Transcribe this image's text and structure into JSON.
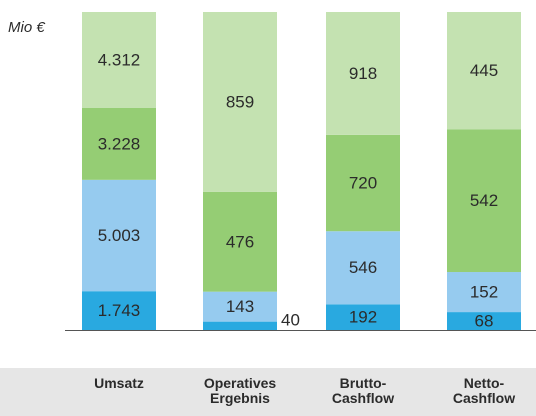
{
  "chart_data": {
    "type": "stacked_bar_100",
    "y_label": "Mio €",
    "categories": [
      "Umsatz",
      "Operatives Ergebnis",
      "Brutto-Cashflow",
      "Netto-Cashflow"
    ],
    "series": [
      {
        "color": "#29a9e0",
        "values": [
          1743,
          40,
          192,
          68
        ],
        "value_labels": [
          "1.743",
          "40",
          "192",
          "68"
        ]
      },
      {
        "color": "#96cbef",
        "values": [
          5003,
          143,
          546,
          152
        ],
        "value_labels": [
          "5.003",
          "143",
          "546",
          "152"
        ]
      },
      {
        "color": "#95cd74",
        "values": [
          3228,
          476,
          720,
          542
        ],
        "value_labels": [
          "3.228",
          "476",
          "720",
          "542"
        ]
      },
      {
        "color": "#c4e2b1",
        "values": [
          4312,
          859,
          918,
          445
        ],
        "value_labels": [
          "4.312",
          "859",
          "918",
          "445"
        ]
      }
    ]
  }
}
